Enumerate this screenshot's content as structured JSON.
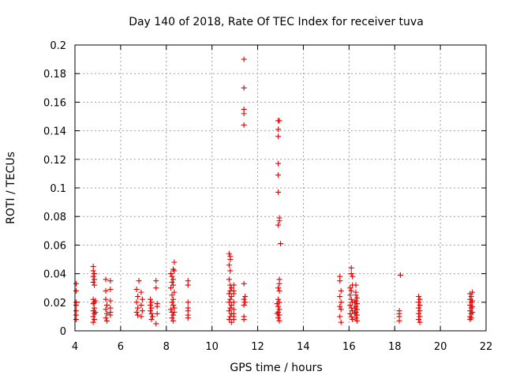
{
  "chart_data": {
    "type": "scatter",
    "title": "Day 140 of 2018, Rate Of TEC Index for receiver tuva",
    "xlabel": "GPS time / hours",
    "ylabel": "ROTI / TECUs",
    "xlim": [
      4,
      22
    ],
    "ylim": [
      0,
      0.2
    ],
    "xticks": [
      "4",
      "6",
      "8",
      "10",
      "12",
      "14",
      "16",
      "18",
      "20",
      "22"
    ],
    "yticks": [
      "0",
      "0.02",
      "0.04",
      "0.06",
      "0.08",
      "0.1",
      "0.12",
      "0.14",
      "0.16",
      "0.18",
      "0.2"
    ],
    "grid": true,
    "marker": "+",
    "color": "#e00000",
    "series": [
      {
        "name": "ROTI",
        "points": [
          [
            4.05,
            0.033
          ],
          [
            4.05,
            0.028
          ],
          [
            4.05,
            0.02
          ],
          [
            4.05,
            0.018
          ],
          [
            4.05,
            0.014
          ],
          [
            4.05,
            0.011
          ],
          [
            4.05,
            0.008
          ],
          [
            4.8,
            0.045
          ],
          [
            4.8,
            0.042
          ],
          [
            4.85,
            0.04
          ],
          [
            4.8,
            0.038
          ],
          [
            4.85,
            0.036
          ],
          [
            4.8,
            0.034
          ],
          [
            4.85,
            0.032
          ],
          [
            4.8,
            0.022
          ],
          [
            4.85,
            0.02
          ],
          [
            4.8,
            0.019
          ],
          [
            4.85,
            0.016
          ],
          [
            4.8,
            0.014
          ],
          [
            4.85,
            0.012
          ],
          [
            4.8,
            0.01
          ],
          [
            4.85,
            0.008
          ],
          [
            4.8,
            0.006
          ],
          [
            4.9,
            0.021
          ],
          [
            4.9,
            0.013
          ],
          [
            5.35,
            0.036
          ],
          [
            5.35,
            0.028
          ],
          [
            5.35,
            0.022
          ],
          [
            5.4,
            0.018
          ],
          [
            5.35,
            0.015
          ],
          [
            5.4,
            0.012
          ],
          [
            5.35,
            0.009
          ],
          [
            5.4,
            0.007
          ],
          [
            5.55,
            0.035
          ],
          [
            5.55,
            0.029
          ],
          [
            5.55,
            0.021
          ],
          [
            5.55,
            0.016
          ],
          [
            5.55,
            0.013
          ],
          [
            5.55,
            0.011
          ],
          [
            6.7,
            0.029
          ],
          [
            6.75,
            0.024
          ],
          [
            6.7,
            0.02
          ],
          [
            6.75,
            0.016
          ],
          [
            6.7,
            0.013
          ],
          [
            6.75,
            0.011
          ],
          [
            6.8,
            0.035
          ],
          [
            6.9,
            0.027
          ],
          [
            6.95,
            0.022
          ],
          [
            6.9,
            0.018
          ],
          [
            6.95,
            0.014
          ],
          [
            6.9,
            0.01
          ],
          [
            7.3,
            0.022
          ],
          [
            7.35,
            0.02
          ],
          [
            7.3,
            0.018
          ],
          [
            7.35,
            0.016
          ],
          [
            7.3,
            0.014
          ],
          [
            7.35,
            0.012
          ],
          [
            7.4,
            0.01
          ],
          [
            7.35,
            0.008
          ],
          [
            7.55,
            0.035
          ],
          [
            7.55,
            0.03
          ],
          [
            7.6,
            0.019
          ],
          [
            7.6,
            0.017
          ],
          [
            7.6,
            0.012
          ],
          [
            7.55,
            0.005
          ],
          [
            8.2,
            0.04
          ],
          [
            8.25,
            0.038
          ],
          [
            8.3,
            0.036
          ],
          [
            8.25,
            0.034
          ],
          [
            8.3,
            0.032
          ],
          [
            8.2,
            0.03
          ],
          [
            8.25,
            0.025
          ],
          [
            8.3,
            0.022
          ],
          [
            8.25,
            0.02
          ],
          [
            8.3,
            0.018
          ],
          [
            8.2,
            0.015
          ],
          [
            8.25,
            0.013
          ],
          [
            8.3,
            0.011
          ],
          [
            8.25,
            0.009
          ],
          [
            8.3,
            0.007
          ],
          [
            8.35,
            0.048
          ],
          [
            8.3,
            0.043
          ],
          [
            8.35,
            0.042
          ],
          [
            8.35,
            0.027
          ],
          [
            8.35,
            0.016
          ],
          [
            8.35,
            0.013
          ],
          [
            8.95,
            0.035
          ],
          [
            8.95,
            0.032
          ],
          [
            8.95,
            0.02
          ],
          [
            8.95,
            0.016
          ],
          [
            8.95,
            0.014
          ],
          [
            8.95,
            0.011
          ],
          [
            8.95,
            0.009
          ],
          [
            10.75,
            0.054
          ],
          [
            10.8,
            0.052
          ],
          [
            10.8,
            0.05
          ],
          [
            10.75,
            0.046
          ],
          [
            10.8,
            0.042
          ],
          [
            10.75,
            0.036
          ],
          [
            10.8,
            0.032
          ],
          [
            10.85,
            0.03
          ],
          [
            10.8,
            0.028
          ],
          [
            10.75,
            0.026
          ],
          [
            10.85,
            0.024
          ],
          [
            10.8,
            0.022
          ],
          [
            10.75,
            0.02
          ],
          [
            10.85,
            0.018
          ],
          [
            10.8,
            0.016
          ],
          [
            10.75,
            0.014
          ],
          [
            10.85,
            0.012
          ],
          [
            10.8,
            0.01
          ],
          [
            10.75,
            0.008
          ],
          [
            10.85,
            0.006
          ],
          [
            10.95,
            0.032
          ],
          [
            10.95,
            0.028
          ],
          [
            10.95,
            0.026
          ],
          [
            10.95,
            0.02
          ],
          [
            10.95,
            0.015
          ],
          [
            10.95,
            0.012
          ],
          [
            10.95,
            0.01
          ],
          [
            10.95,
            0.008
          ],
          [
            11.4,
            0.19
          ],
          [
            11.4,
            0.17
          ],
          [
            11.4,
            0.155
          ],
          [
            11.4,
            0.152
          ],
          [
            11.4,
            0.144
          ],
          [
            11.4,
            0.033
          ],
          [
            11.45,
            0.024
          ],
          [
            11.4,
            0.022
          ],
          [
            11.45,
            0.02
          ],
          [
            11.4,
            0.018
          ],
          [
            11.4,
            0.01
          ],
          [
            11.4,
            0.008
          ],
          [
            12.9,
            0.147
          ],
          [
            12.95,
            0.147
          ],
          [
            12.9,
            0.141
          ],
          [
            12.9,
            0.136
          ],
          [
            12.9,
            0.117
          ],
          [
            12.9,
            0.109
          ],
          [
            12.9,
            0.097
          ],
          [
            12.95,
            0.079
          ],
          [
            12.95,
            0.077
          ],
          [
            12.9,
            0.074
          ],
          [
            13.0,
            0.061
          ],
          [
            12.95,
            0.036
          ],
          [
            12.95,
            0.033
          ],
          [
            12.9,
            0.03
          ],
          [
            12.95,
            0.028
          ],
          [
            12.9,
            0.022
          ],
          [
            12.95,
            0.02
          ],
          [
            12.9,
            0.017
          ],
          [
            12.95,
            0.015
          ],
          [
            12.9,
            0.013
          ],
          [
            12.95,
            0.011
          ],
          [
            12.9,
            0.009
          ],
          [
            12.95,
            0.007
          ],
          [
            12.85,
            0.019
          ],
          [
            12.85,
            0.012
          ],
          [
            15.6,
            0.038
          ],
          [
            15.6,
            0.035
          ],
          [
            15.65,
            0.028
          ],
          [
            15.6,
            0.024
          ],
          [
            15.65,
            0.02
          ],
          [
            15.6,
            0.017
          ],
          [
            15.65,
            0.015
          ],
          [
            15.6,
            0.01
          ],
          [
            15.65,
            0.006
          ],
          [
            16.1,
            0.044
          ],
          [
            16.1,
            0.04
          ],
          [
            16.15,
            0.038
          ],
          [
            16.15,
            0.032
          ],
          [
            16.05,
            0.03
          ],
          [
            16.1,
            0.028
          ],
          [
            16.05,
            0.025
          ],
          [
            16.1,
            0.022
          ],
          [
            16.15,
            0.02
          ],
          [
            16.05,
            0.018
          ],
          [
            16.1,
            0.016
          ],
          [
            16.15,
            0.014
          ],
          [
            16.05,
            0.012
          ],
          [
            16.1,
            0.01
          ],
          [
            16.15,
            0.008
          ],
          [
            16.3,
            0.032
          ],
          [
            16.3,
            0.027
          ],
          [
            16.3,
            0.025
          ],
          [
            16.35,
            0.023
          ],
          [
            16.3,
            0.021
          ],
          [
            16.35,
            0.019
          ],
          [
            16.3,
            0.017
          ],
          [
            16.35,
            0.015
          ],
          [
            16.3,
            0.013
          ],
          [
            16.35,
            0.011
          ],
          [
            16.3,
            0.009
          ],
          [
            16.35,
            0.007
          ],
          [
            16.25,
            0.02
          ],
          [
            16.25,
            0.016
          ],
          [
            16.25,
            0.012
          ],
          [
            18.25,
            0.039
          ],
          [
            18.2,
            0.014
          ],
          [
            18.2,
            0.012
          ],
          [
            18.2,
            0.01
          ],
          [
            18.2,
            0.007
          ],
          [
            19.05,
            0.024
          ],
          [
            19.1,
            0.022
          ],
          [
            19.05,
            0.02
          ],
          [
            19.1,
            0.018
          ],
          [
            19.05,
            0.016
          ],
          [
            19.1,
            0.014
          ],
          [
            19.05,
            0.012
          ],
          [
            19.1,
            0.01
          ],
          [
            19.05,
            0.008
          ],
          [
            19.1,
            0.006
          ],
          [
            21.3,
            0.026
          ],
          [
            21.35,
            0.024
          ],
          [
            21.3,
            0.022
          ],
          [
            21.35,
            0.02
          ],
          [
            21.3,
            0.018
          ],
          [
            21.35,
            0.016
          ],
          [
            21.3,
            0.014
          ],
          [
            21.35,
            0.012
          ],
          [
            21.3,
            0.01
          ],
          [
            21.35,
            0.009
          ],
          [
            21.3,
            0.008
          ],
          [
            21.4,
            0.027
          ],
          [
            21.4,
            0.021
          ],
          [
            21.4,
            0.017
          ],
          [
            21.4,
            0.013
          ]
        ]
      }
    ]
  }
}
